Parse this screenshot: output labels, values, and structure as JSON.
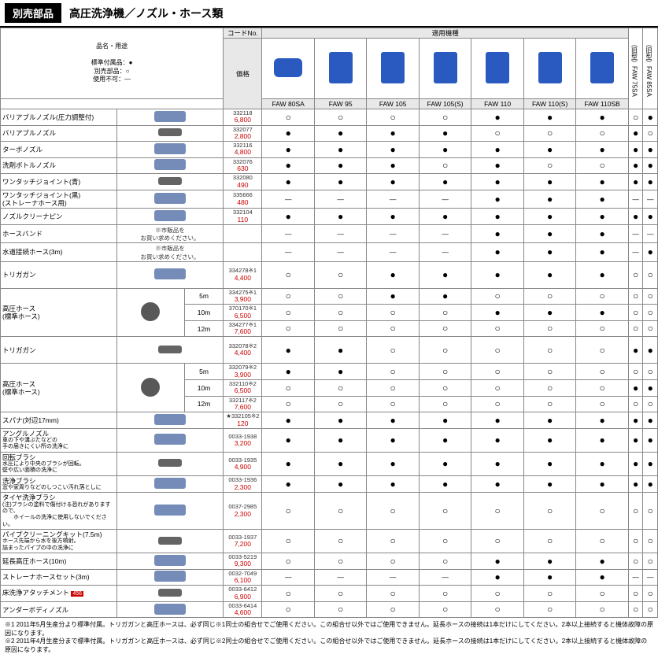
{
  "header": {
    "badge": "別売部品",
    "title": "高圧洗浄機／ノズル・ホース類"
  },
  "legend": {
    "l1": "品名・用途",
    "l2": "標準付属品：●",
    "l3": "別売部品：○",
    "l4": "使用不可：—"
  },
  "cols": {
    "code": "コードNo.",
    "price": "価格",
    "group": "適用機種",
    "models": [
      "FAW 80SA",
      "FAW 95",
      "FAW 105",
      "FAW 105(S)",
      "FAW 110",
      "FAW 110(S)",
      "FAW 110SB"
    ],
    "side": [
      "（旧型）FAW 75SA",
      "（旧型）FAW 85SA"
    ]
  },
  "rows": [
    {
      "name": "バリアブルノズル(圧力調整付)",
      "code": "332118",
      "price": "6,800",
      "m": [
        "○",
        "○",
        "○",
        "○",
        "●",
        "●",
        "●"
      ],
      "s": [
        "○",
        "●"
      ]
    },
    {
      "name": "バリアブルノズル",
      "code": "332077",
      "price": "2,800",
      "m": [
        "●",
        "●",
        "●",
        "●",
        "○",
        "○",
        "○"
      ],
      "s": [
        "●",
        "○"
      ]
    },
    {
      "name": "ターボノズル",
      "code": "332116",
      "price": "4,800",
      "m": [
        "●",
        "●",
        "●",
        "●",
        "●",
        "●",
        "●"
      ],
      "s": [
        "●",
        "●"
      ]
    },
    {
      "name": "洗剤ボトルノズル",
      "code": "332076",
      "price": "630",
      "m": [
        "●",
        "●",
        "●",
        "○",
        "●",
        "○",
        "○"
      ],
      "s": [
        "●",
        "●"
      ]
    },
    {
      "name": "ワンタッチジョイント(青)",
      "code": "332080",
      "price": "490",
      "m": [
        "●",
        "●",
        "●",
        "●",
        "●",
        "●",
        "●"
      ],
      "s": [
        "●",
        "●"
      ]
    },
    {
      "name": "ワンタッチジョイント(黒)\n(ストレーナホース用)",
      "code": "335666",
      "price": "480",
      "m": [
        "—",
        "—",
        "—",
        "—",
        "●",
        "●",
        "●"
      ],
      "s": [
        "—",
        "—"
      ]
    },
    {
      "name": "ノズルクリーナピン",
      "code": "332104",
      "price": "110",
      "m": [
        "●",
        "●",
        "●",
        "●",
        "●",
        "●",
        "●"
      ],
      "s": [
        "●",
        "●"
      ]
    },
    {
      "name": "ホースバンド",
      "note": "※市販品を\nお買い求めください。",
      "code": "",
      "price": "",
      "m": [
        "—",
        "—",
        "—",
        "—",
        "●",
        "●",
        "●"
      ],
      "s": [
        "—",
        "—"
      ]
    },
    {
      "name": "水道接続ホース(3m)",
      "note": "※市販品を\nお買い求めください。",
      "code": "",
      "price": "",
      "m": [
        "—",
        "—",
        "—",
        "—",
        "●",
        "●",
        "●"
      ],
      "s": [
        "—",
        "●"
      ]
    },
    {
      "name": "トリガガン",
      "code": "334278※1",
      "price": "4,400",
      "m": [
        "○",
        "○",
        "●",
        "●",
        "●",
        "●",
        "●"
      ],
      "s": [
        "○",
        "○"
      ],
      "tall": true
    },
    {
      "name": "高圧ホース\n(標準ホース)",
      "sub": "5m",
      "code": "334275※1",
      "price": "3,900",
      "m": [
        "○",
        "○",
        "●",
        "●",
        "○",
        "○",
        "○"
      ],
      "s": [
        "○",
        "○"
      ],
      "group3": true
    },
    {
      "name": "",
      "sub": "10m",
      "code": "370170※1",
      "price": "6,500",
      "m": [
        "○",
        "○",
        "○",
        "○",
        "●",
        "●",
        "●"
      ],
      "s": [
        "○",
        "○"
      ]
    },
    {
      "name": "",
      "sub": "12m",
      "code": "334277※1",
      "price": "7,600",
      "m": [
        "○",
        "○",
        "○",
        "○",
        "○",
        "○",
        "○"
      ],
      "s": [
        "○",
        "○"
      ]
    },
    {
      "name": "トリガガン",
      "code": "332078※2",
      "price": "4,400",
      "m": [
        "●",
        "●",
        "○",
        "○",
        "○",
        "○",
        "○"
      ],
      "s": [
        "●",
        "●"
      ],
      "tall": true
    },
    {
      "name": "高圧ホース\n(標準ホース)",
      "sub": "5m",
      "code": "332079※2",
      "price": "3,900",
      "m": [
        "●",
        "●",
        "○",
        "○",
        "○",
        "○",
        "○"
      ],
      "s": [
        "○",
        "○"
      ],
      "group3": true
    },
    {
      "name": "",
      "sub": "10m",
      "code": "332110※2",
      "price": "6,500",
      "m": [
        "○",
        "○",
        "○",
        "○",
        "○",
        "○",
        "○"
      ],
      "s": [
        "●",
        "●"
      ]
    },
    {
      "name": "",
      "sub": "12m",
      "code": "332117※2",
      "price": "7,600",
      "m": [
        "○",
        "○",
        "○",
        "○",
        "○",
        "○",
        "○"
      ],
      "s": [
        "○",
        "○"
      ]
    },
    {
      "name": "スパナ(対辺17mm)",
      "code": "★332105※2",
      "price": "120",
      "red": true,
      "m": [
        "●",
        "●",
        "●",
        "●",
        "●",
        "●",
        "●"
      ],
      "s": [
        "●",
        "●"
      ]
    },
    {
      "name": "アングルノズル",
      "sub2": "車の下や溝ぶたなどの\n手の届きにくい所の洗浄に",
      "code": "0033-1938",
      "price": "3,200",
      "m": [
        "●",
        "●",
        "●",
        "●",
        "●",
        "●",
        "●"
      ],
      "s": [
        "●",
        "●"
      ]
    },
    {
      "name": "回転ブラシ",
      "sub2": "水圧により中央のブラシが回転。\n壁や広い面積の洗浄に",
      "code": "0033-1935",
      "price": "4,900",
      "m": [
        "●",
        "●",
        "●",
        "●",
        "●",
        "●",
        "●"
      ],
      "s": [
        "●",
        "●"
      ]
    },
    {
      "name": "洗浄ブラシ",
      "sub2": "窓や家周りなどのしつこい汚れ落としに",
      "code": "0033-1936",
      "price": "2,300",
      "m": [
        "●",
        "●",
        "●",
        "●",
        "●",
        "●",
        "●"
      ],
      "s": [
        "●",
        "●"
      ]
    },
    {
      "name": "タイヤ洗浄ブラシ",
      "sub2": "(注)ブラシの塗料で傷付ける恐れがありますので、\n　　ホイールの洗浄に使用しないでください。",
      "code": "0037-2985",
      "price": "2,300",
      "m": [
        "○",
        "○",
        "○",
        "○",
        "○",
        "○",
        "○"
      ],
      "s": [
        "○",
        "○"
      ]
    },
    {
      "name": "パイプクリーニングキット(7.5m)",
      "sub2": "ホース先端から水を後方噴射。\n詰まったパイプの中の洗浄に",
      "code": "0033-1937",
      "price": "7,200",
      "m": [
        "○",
        "○",
        "○",
        "○",
        "○",
        "○",
        "○"
      ],
      "s": [
        "○",
        "○"
      ]
    },
    {
      "name": "延長高圧ホース(10m)",
      "code": "0033-5219",
      "price": "9,300",
      "m": [
        "○",
        "○",
        "○",
        "○",
        "●",
        "●",
        "●"
      ],
      "s": [
        "○",
        "○"
      ]
    },
    {
      "name": "ストレーナホースセット(3m)",
      "code": "0032-7049",
      "price": "6,100",
      "m": [
        "—",
        "—",
        "—",
        "—",
        "●",
        "●",
        "●"
      ],
      "s": [
        "—",
        "—"
      ]
    },
    {
      "name": "床洗浄アタッチメント",
      "marker": "456",
      "code": "0033-6412",
      "price": "6,900",
      "m": [
        "○",
        "○",
        "○",
        "○",
        "○",
        "○",
        "○"
      ],
      "s": [
        "○",
        "○"
      ]
    },
    {
      "name": "アンダーボディノズル",
      "code": "0033-6414",
      "price": "4,600",
      "m": [
        "○",
        "○",
        "○",
        "○",
        "○",
        "○",
        "○"
      ],
      "s": [
        "○",
        "○"
      ]
    }
  ],
  "footnotes": [
    "※1 2011年5月生産分より標準付属。トリガガンと高圧ホースは、必ず同じ※1同士の組合せでご使用ください。この組合せ以外ではご使用できません。延長ホースの接続は1本だけにしてください。2本以上接続すると機体故障の原因になります。",
    "※2 2011年4月生産分まで標準付属。トリガガンと高圧ホースは、必ず同じ※2同士の組合せでご使用ください。この組合せ以外ではご使用できません。延長ホースの接続は1本だけにしてください。2本以上接続すると機体故障の原因になります。"
  ]
}
